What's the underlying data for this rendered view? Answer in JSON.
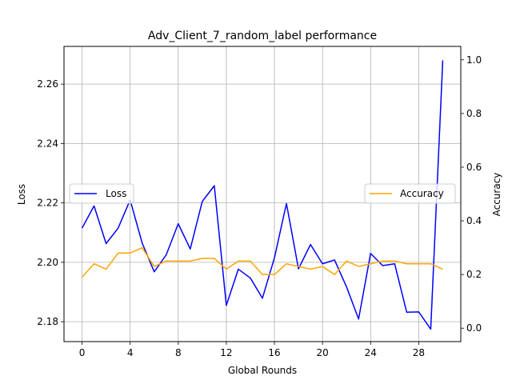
{
  "chart_data": {
    "type": "line",
    "title": "Adv_Client_7_random_label performance",
    "xlabel": "Global Rounds",
    "ylabel_left": "Loss",
    "ylabel_right": "Accuracy",
    "x": [
      0,
      1,
      2,
      3,
      4,
      5,
      6,
      7,
      8,
      9,
      10,
      11,
      12,
      13,
      14,
      15,
      16,
      17,
      18,
      19,
      20,
      21,
      22,
      23,
      24,
      25,
      26,
      27,
      28,
      29,
      30
    ],
    "xlim": [
      -1.5,
      31.5
    ],
    "xticks": [
      "0",
      "4",
      "8",
      "12",
      "16",
      "20",
      "24",
      "28"
    ],
    "ylim_left": [
      2.1733,
      2.2727
    ],
    "yticks_left": [
      "2.18",
      "2.20",
      "2.22",
      "2.24",
      "2.26"
    ],
    "ylim_right": [
      -0.05,
      1.05
    ],
    "yticks_right": [
      "0.0",
      "0.2",
      "0.4",
      "0.6",
      "0.8",
      "1.0"
    ],
    "grid": true,
    "series": [
      {
        "name": "Loss",
        "axis": "left",
        "color": "#0000ff",
        "legend_position": "center-left",
        "values": [
          2.2115,
          2.219,
          2.2063,
          2.2115,
          2.221,
          2.2065,
          2.1968,
          2.2025,
          2.213,
          2.2045,
          2.2205,
          2.2258,
          2.1855,
          2.1977,
          2.1947,
          2.1879,
          2.2015,
          2.2198,
          2.1978,
          2.206,
          2.1995,
          2.2008,
          2.1917,
          2.1809,
          2.203,
          2.1989,
          2.1995,
          2.1832,
          2.1833,
          2.1775,
          2.268
        ]
      },
      {
        "name": "Accuracy",
        "axis": "right",
        "color": "#ffa500",
        "legend_position": "center-right",
        "values": [
          0.19,
          0.24,
          0.22,
          0.28,
          0.28,
          0.3,
          0.23,
          0.25,
          0.25,
          0.25,
          0.26,
          0.26,
          0.22,
          0.25,
          0.25,
          0.2,
          0.2,
          0.24,
          0.23,
          0.22,
          0.23,
          0.2,
          0.25,
          0.23,
          0.24,
          0.25,
          0.25,
          0.24,
          0.24,
          0.24,
          0.22
        ]
      }
    ]
  }
}
